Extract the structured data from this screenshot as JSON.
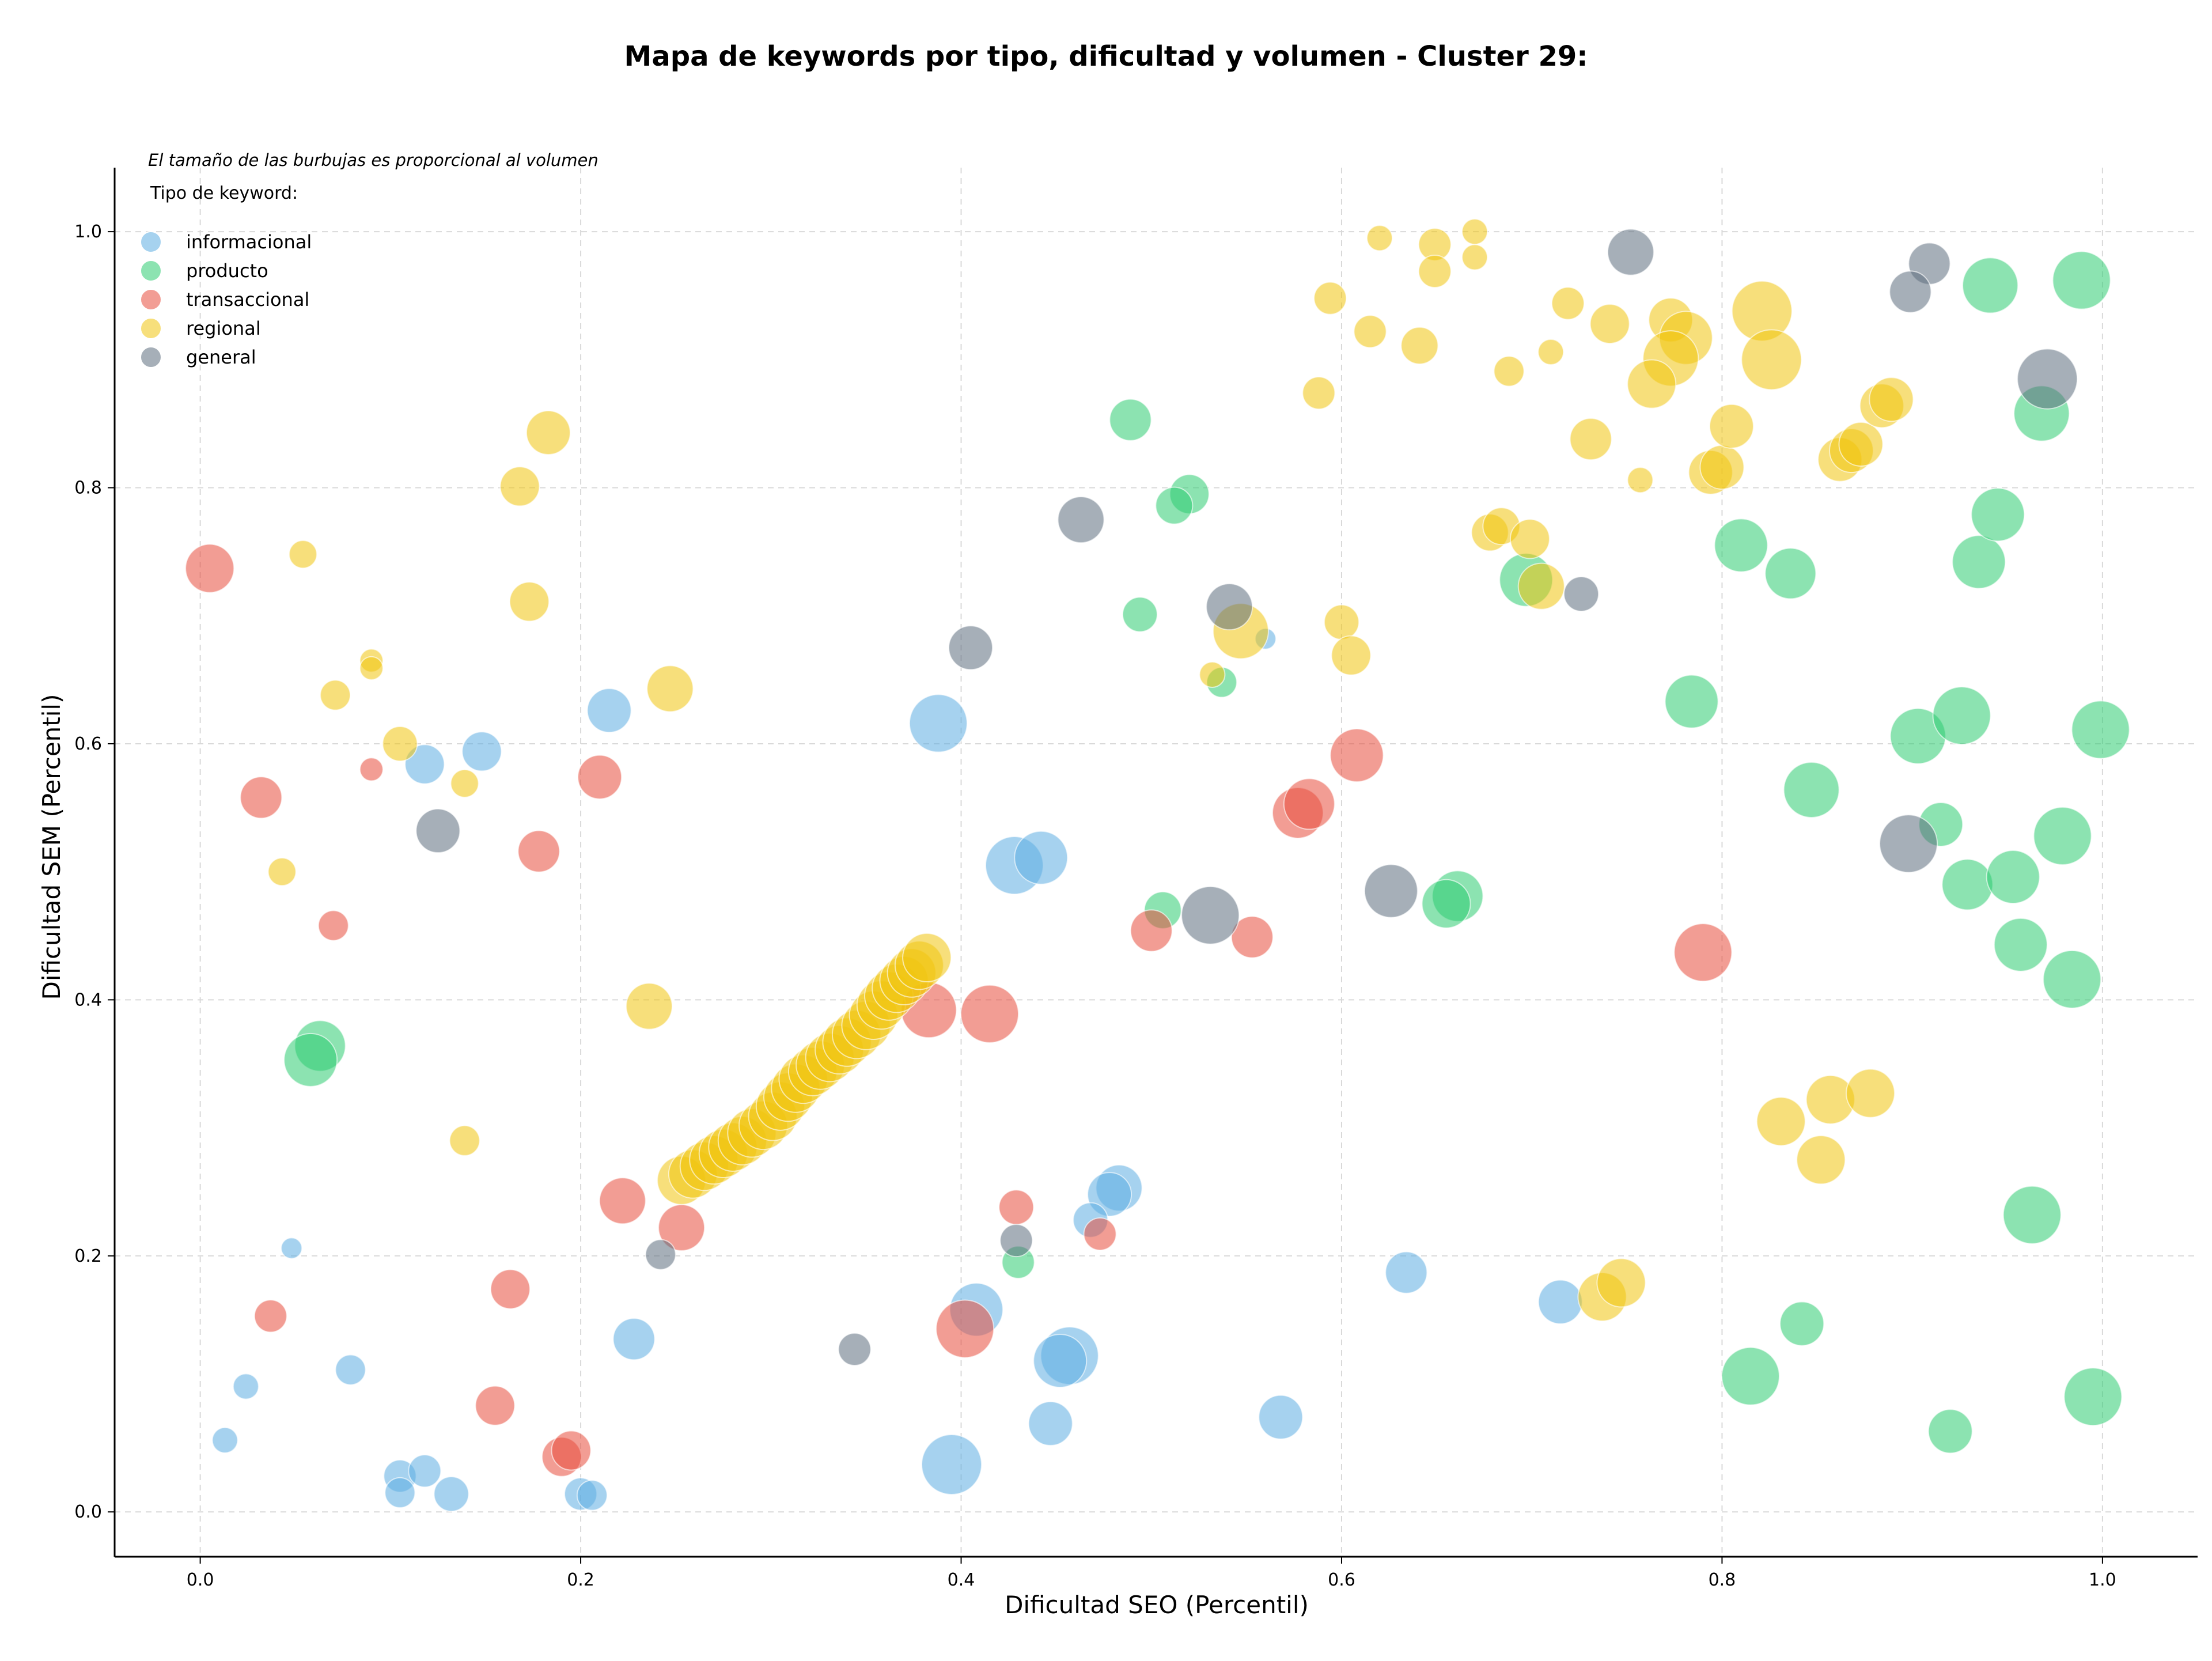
{
  "chart_data": {
    "type": "scatter",
    "title": "Mapa de keywords por tipo, dificultad y volumen - Cluster 29:",
    "xlabel": "Dificultad SEO (Percentil)",
    "ylabel": "Dificultad SEM (Percentil)",
    "annotation": "El tamaño de las burbujas es proporcional al volumen",
    "xlim": [
      -0.045,
      1.05
    ],
    "ylim": [
      -0.035,
      1.05
    ],
    "xticks": [
      0.0,
      0.2,
      0.4,
      0.6,
      0.8,
      1.0
    ],
    "yticks": [
      0.0,
      0.2,
      0.4,
      0.6,
      0.8,
      1.0
    ],
    "xtick_labels": [
      "0.0",
      "0.2",
      "0.4",
      "0.6",
      "0.8",
      "1.0"
    ],
    "ytick_labels": [
      "0.0",
      "0.2",
      "0.4",
      "0.6",
      "0.8",
      "1.0"
    ],
    "grid": true,
    "legend": {
      "title": "Tipo de keyword:",
      "placement": "top-left",
      "entries": [
        "informacional",
        "producto",
        "transaccional",
        "regional",
        "general"
      ]
    },
    "colors": {
      "informacional": "#5dade2",
      "producto": "#2ecc71",
      "transaccional": "#e74c3c",
      "regional": "#f1c40f",
      "general": "#5d6d7e"
    },
    "series": [
      {
        "name": "informacional",
        "points": [
          [
            0.388,
            0.616,
            50
          ],
          [
            0.428,
            0.505,
            50
          ],
          [
            0.442,
            0.511,
            46
          ],
          [
            0.215,
            0.626,
            38
          ],
          [
            0.148,
            0.594,
            34
          ],
          [
            0.118,
            0.584,
            34
          ],
          [
            0.483,
            0.253,
            40
          ],
          [
            0.478,
            0.248,
            38
          ],
          [
            0.468,
            0.228,
            30
          ],
          [
            0.408,
            0.158,
            46
          ],
          [
            0.457,
            0.122,
            50
          ],
          [
            0.452,
            0.118,
            46
          ],
          [
            0.447,
            0.069,
            38
          ],
          [
            0.395,
            0.037,
            52
          ],
          [
            0.568,
            0.074,
            38
          ],
          [
            0.634,
            0.187,
            36
          ],
          [
            0.715,
            0.164,
            38
          ],
          [
            0.228,
            0.135,
            36
          ],
          [
            0.079,
            0.111,
            26
          ],
          [
            0.024,
            0.098,
            22
          ],
          [
            0.013,
            0.056,
            22
          ],
          [
            0.048,
            0.206,
            18
          ],
          [
            0.105,
            0.028,
            28
          ],
          [
            0.118,
            0.032,
            28
          ],
          [
            0.105,
            0.015,
            26
          ],
          [
            0.132,
            0.014,
            30
          ],
          [
            0.2,
            0.014,
            28
          ],
          [
            0.206,
            0.013,
            26
          ],
          [
            0.56,
            0.682,
            18
          ]
        ]
      },
      {
        "name": "producto",
        "points": [
          [
            0.489,
            0.853,
            36
          ],
          [
            0.52,
            0.795,
            34
          ],
          [
            0.512,
            0.786,
            32
          ],
          [
            0.494,
            0.701,
            30
          ],
          [
            0.537,
            0.648,
            26
          ],
          [
            0.506,
            0.47,
            32
          ],
          [
            0.661,
            0.481,
            44
          ],
          [
            0.655,
            0.475,
            42
          ],
          [
            0.697,
            0.728,
            46
          ],
          [
            0.81,
            0.755,
            46
          ],
          [
            0.836,
            0.733,
            44
          ],
          [
            0.784,
            0.633,
            46
          ],
          [
            0.847,
            0.564,
            48
          ],
          [
            0.903,
            0.606,
            48
          ],
          [
            0.926,
            0.622,
            50
          ],
          [
            0.941,
            0.958,
            48
          ],
          [
            0.989,
            0.962,
            50
          ],
          [
            0.968,
            0.858,
            48
          ],
          [
            0.935,
            0.742,
            46
          ],
          [
            0.945,
            0.779,
            46
          ],
          [
            0.999,
            0.611,
            50
          ],
          [
            0.915,
            0.537,
            38
          ],
          [
            0.929,
            0.49,
            44
          ],
          [
            0.953,
            0.496,
            46
          ],
          [
            0.979,
            0.528,
            50
          ],
          [
            0.957,
            0.443,
            46
          ],
          [
            0.984,
            0.416,
            50
          ],
          [
            0.963,
            0.232,
            50
          ],
          [
            0.995,
            0.09,
            50
          ],
          [
            0.92,
            0.063,
            38
          ],
          [
            0.842,
            0.147,
            38
          ],
          [
            0.815,
            0.106,
            50
          ],
          [
            0.063,
            0.364,
            44
          ],
          [
            0.058,
            0.353,
            46
          ],
          [
            0.43,
            0.195,
            28
          ]
        ]
      },
      {
        "name": "transaccional",
        "points": [
          [
            0.005,
            0.737,
            42
          ],
          [
            0.032,
            0.558,
            36
          ],
          [
            0.09,
            0.58,
            20
          ],
          [
            0.07,
            0.458,
            26
          ],
          [
            0.178,
            0.516,
            36
          ],
          [
            0.21,
            0.574,
            38
          ],
          [
            0.383,
            0.392,
            48
          ],
          [
            0.415,
            0.389,
            50
          ],
          [
            0.5,
            0.454,
            36
          ],
          [
            0.553,
            0.449,
            36
          ],
          [
            0.577,
            0.546,
            44
          ],
          [
            0.583,
            0.553,
            44
          ],
          [
            0.608,
            0.591,
            46
          ],
          [
            0.79,
            0.437,
            50
          ],
          [
            0.222,
            0.243,
            40
          ],
          [
            0.253,
            0.222,
            40
          ],
          [
            0.429,
            0.238,
            30
          ],
          [
            0.473,
            0.217,
            28
          ],
          [
            0.402,
            0.143,
            50
          ],
          [
            0.163,
            0.174,
            34
          ],
          [
            0.037,
            0.153,
            28
          ],
          [
            0.155,
            0.083,
            34
          ],
          [
            0.19,
            0.043,
            34
          ],
          [
            0.195,
            0.048,
            34
          ]
        ]
      },
      {
        "name": "regional",
        "points": [
          [
            0.054,
            0.748,
            24
          ],
          [
            0.09,
            0.665,
            20
          ],
          [
            0.09,
            0.659,
            20
          ],
          [
            0.071,
            0.638,
            26
          ],
          [
            0.105,
            0.6,
            30
          ],
          [
            0.139,
            0.569,
            24
          ],
          [
            0.043,
            0.5,
            24
          ],
          [
            0.183,
            0.843,
            38
          ],
          [
            0.168,
            0.801,
            34
          ],
          [
            0.173,
            0.711,
            34
          ],
          [
            0.247,
            0.643,
            40
          ],
          [
            0.236,
            0.395,
            40
          ],
          [
            0.139,
            0.29,
            26
          ],
          [
            0.62,
            0.995,
            22
          ],
          [
            0.649,
            0.99,
            28
          ],
          [
            0.67,
            1.0,
            22
          ],
          [
            0.67,
            0.98,
            22
          ],
          [
            0.649,
            0.969,
            28
          ],
          [
            0.594,
            0.948,
            28
          ],
          [
            0.615,
            0.922,
            28
          ],
          [
            0.641,
            0.911,
            32
          ],
          [
            0.71,
            0.906,
            22
          ],
          [
            0.688,
            0.891,
            26
          ],
          [
            0.719,
            0.944,
            28
          ],
          [
            0.741,
            0.928,
            34
          ],
          [
            0.773,
            0.931,
            38
          ],
          [
            0.781,
            0.917,
            46
          ],
          [
            0.773,
            0.901,
            48
          ],
          [
            0.763,
            0.881,
            42
          ],
          [
            0.821,
            0.938,
            52
          ],
          [
            0.826,
            0.9,
            52
          ],
          [
            0.588,
            0.874,
            28
          ],
          [
            0.731,
            0.838,
            36
          ],
          [
            0.757,
            0.806,
            22
          ],
          [
            0.794,
            0.812,
            38
          ],
          [
            0.8,
            0.816,
            38
          ],
          [
            0.805,
            0.848,
            38
          ],
          [
            0.862,
            0.822,
            38
          ],
          [
            0.868,
            0.829,
            38
          ],
          [
            0.873,
            0.834,
            38
          ],
          [
            0.884,
            0.864,
            38
          ],
          [
            0.889,
            0.869,
            38
          ],
          [
            0.678,
            0.765,
            32
          ],
          [
            0.684,
            0.77,
            32
          ],
          [
            0.699,
            0.76,
            34
          ],
          [
            0.705,
            0.723,
            40
          ],
          [
            0.547,
            0.688,
            48
          ],
          [
            0.532,
            0.654,
            22
          ],
          [
            0.6,
            0.695,
            30
          ],
          [
            0.605,
            0.669,
            34
          ],
          [
            0.831,
            0.305,
            42
          ],
          [
            0.852,
            0.275,
            42
          ],
          [
            0.857,
            0.322,
            42
          ],
          [
            0.878,
            0.327,
            42
          ],
          [
            0.737,
            0.168,
            42
          ],
          [
            0.747,
            0.179,
            42
          ],
          [
            0.253,
            0.259,
            42
          ],
          [
            0.259,
            0.264,
            42
          ],
          [
            0.265,
            0.27,
            42
          ],
          [
            0.27,
            0.275,
            42
          ],
          [
            0.275,
            0.28,
            42
          ],
          [
            0.28,
            0.285,
            42
          ],
          [
            0.285,
            0.29,
            42
          ],
          [
            0.29,
            0.296,
            42
          ],
          [
            0.296,
            0.302,
            42
          ],
          [
            0.301,
            0.309,
            42
          ],
          [
            0.305,
            0.317,
            42
          ],
          [
            0.309,
            0.324,
            42
          ],
          [
            0.313,
            0.331,
            42
          ],
          [
            0.317,
            0.338,
            42
          ],
          [
            0.322,
            0.344,
            42
          ],
          [
            0.326,
            0.349,
            42
          ],
          [
            0.331,
            0.355,
            42
          ],
          [
            0.336,
            0.361,
            42
          ],
          [
            0.34,
            0.367,
            42
          ],
          [
            0.345,
            0.373,
            42
          ],
          [
            0.35,
            0.38,
            42
          ],
          [
            0.354,
            0.388,
            42
          ],
          [
            0.358,
            0.396,
            42
          ],
          [
            0.362,
            0.403,
            42
          ],
          [
            0.366,
            0.409,
            42
          ],
          [
            0.37,
            0.415,
            42
          ],
          [
            0.374,
            0.421,
            42
          ],
          [
            0.378,
            0.427,
            42
          ],
          [
            0.382,
            0.433,
            42
          ]
        ]
      },
      {
        "name": "general",
        "points": [
          [
            0.752,
            0.984,
            40
          ],
          [
            0.909,
            0.975,
            36
          ],
          [
            0.899,
            0.953,
            36
          ],
          [
            0.971,
            0.885,
            52
          ],
          [
            0.463,
            0.775,
            40
          ],
          [
            0.541,
            0.707,
            40
          ],
          [
            0.726,
            0.717,
            30
          ],
          [
            0.405,
            0.675,
            38
          ],
          [
            0.125,
            0.532,
            38
          ],
          [
            0.531,
            0.466,
            50
          ],
          [
            0.626,
            0.485,
            46
          ],
          [
            0.898,
            0.522,
            50
          ],
          [
            0.429,
            0.212,
            28
          ],
          [
            0.242,
            0.201,
            26
          ],
          [
            0.344,
            0.127,
            28
          ]
        ]
      }
    ]
  }
}
